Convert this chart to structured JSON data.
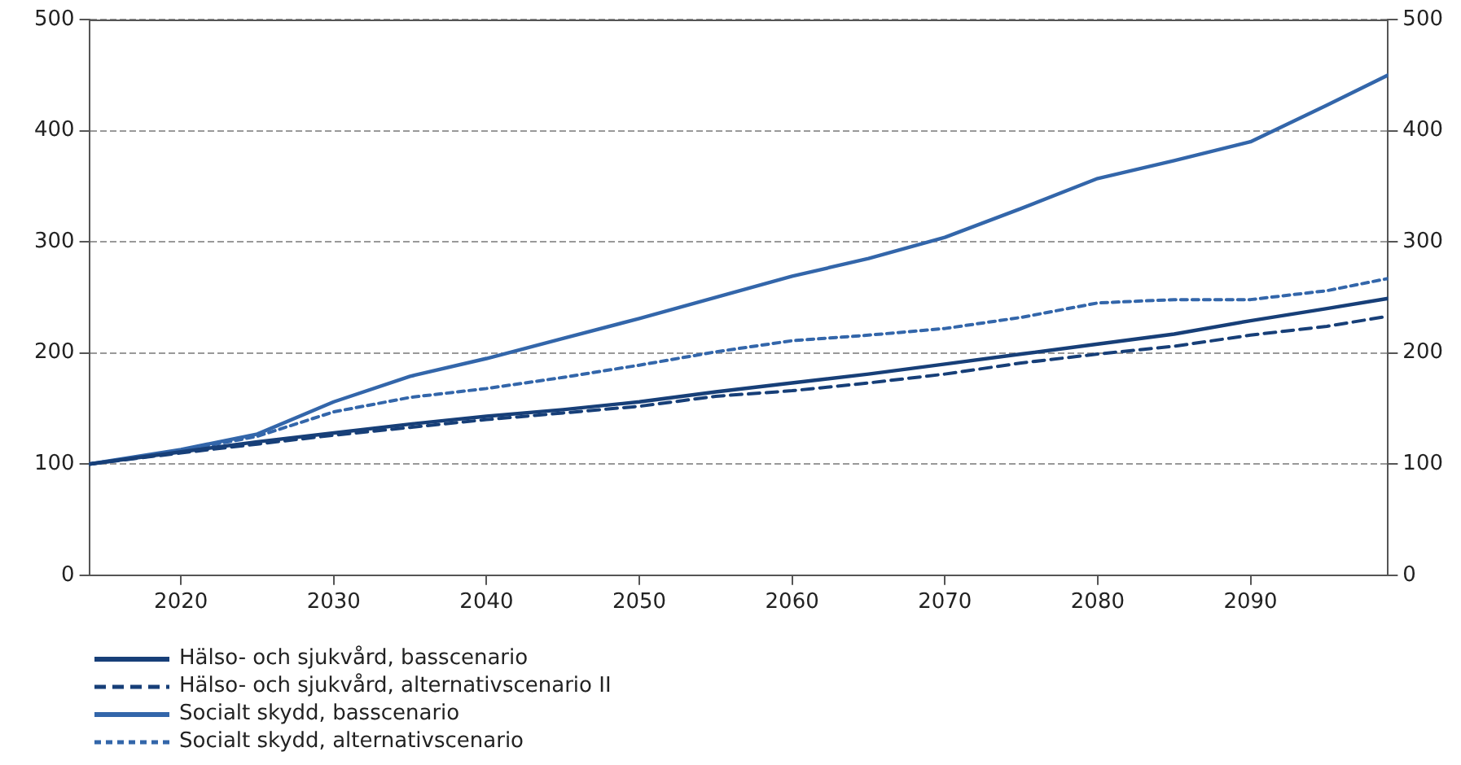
{
  "chart_data": {
    "type": "line",
    "x": [
      2014,
      2020,
      2025,
      2030,
      2035,
      2040,
      2045,
      2050,
      2055,
      2060,
      2065,
      2070,
      2075,
      2080,
      2085,
      2090,
      2095,
      2099
    ],
    "xlim": [
      2014,
      2099
    ],
    "xticks": [
      2020,
      2030,
      2040,
      2050,
      2060,
      2070,
      2080,
      2090
    ],
    "ylim": [
      0,
      500
    ],
    "yticks": [
      0,
      100,
      200,
      300,
      400,
      500
    ],
    "y2lim": [
      0,
      500
    ],
    "y2ticks": [
      0,
      100,
      200,
      300,
      400,
      500
    ],
    "grid": "y",
    "legend": "bottom",
    "marker": "none",
    "series": [
      {
        "name": "Hälso- och sjukvård, basscenario",
        "color": "#173f78",
        "line_style": "solid",
        "values": [
          100,
          111,
          120,
          128,
          136,
          143,
          149,
          156,
          165,
          173,
          181,
          190,
          199,
          208,
          217,
          229,
          240,
          249
        ]
      },
      {
        "name": "Hälso- och sjukvård, alternativscenario II",
        "color": "#173f78",
        "line_style": "dashed",
        "values": [
          100,
          110,
          118,
          126,
          133,
          140,
          146,
          152,
          161,
          166,
          173,
          181,
          191,
          199,
          206,
          216,
          224,
          233
        ]
      },
      {
        "name": "Socialt skydd, basscenario",
        "color": "#3366aa",
        "line_style": "solid",
        "values": [
          100,
          113,
          127,
          156,
          179,
          195,
          213,
          231,
          250,
          269,
          285,
          304,
          330,
          357,
          373,
          390,
          423,
          450
        ]
      },
      {
        "name": "Socialt skydd, alternativscenario",
        "color": "#3366aa",
        "line_style": "dotted",
        "values": [
          100,
          112,
          125,
          147,
          160,
          168,
          178,
          189,
          201,
          211,
          216,
          222,
          232,
          245,
          248,
          248,
          256,
          267
        ]
      }
    ]
  }
}
